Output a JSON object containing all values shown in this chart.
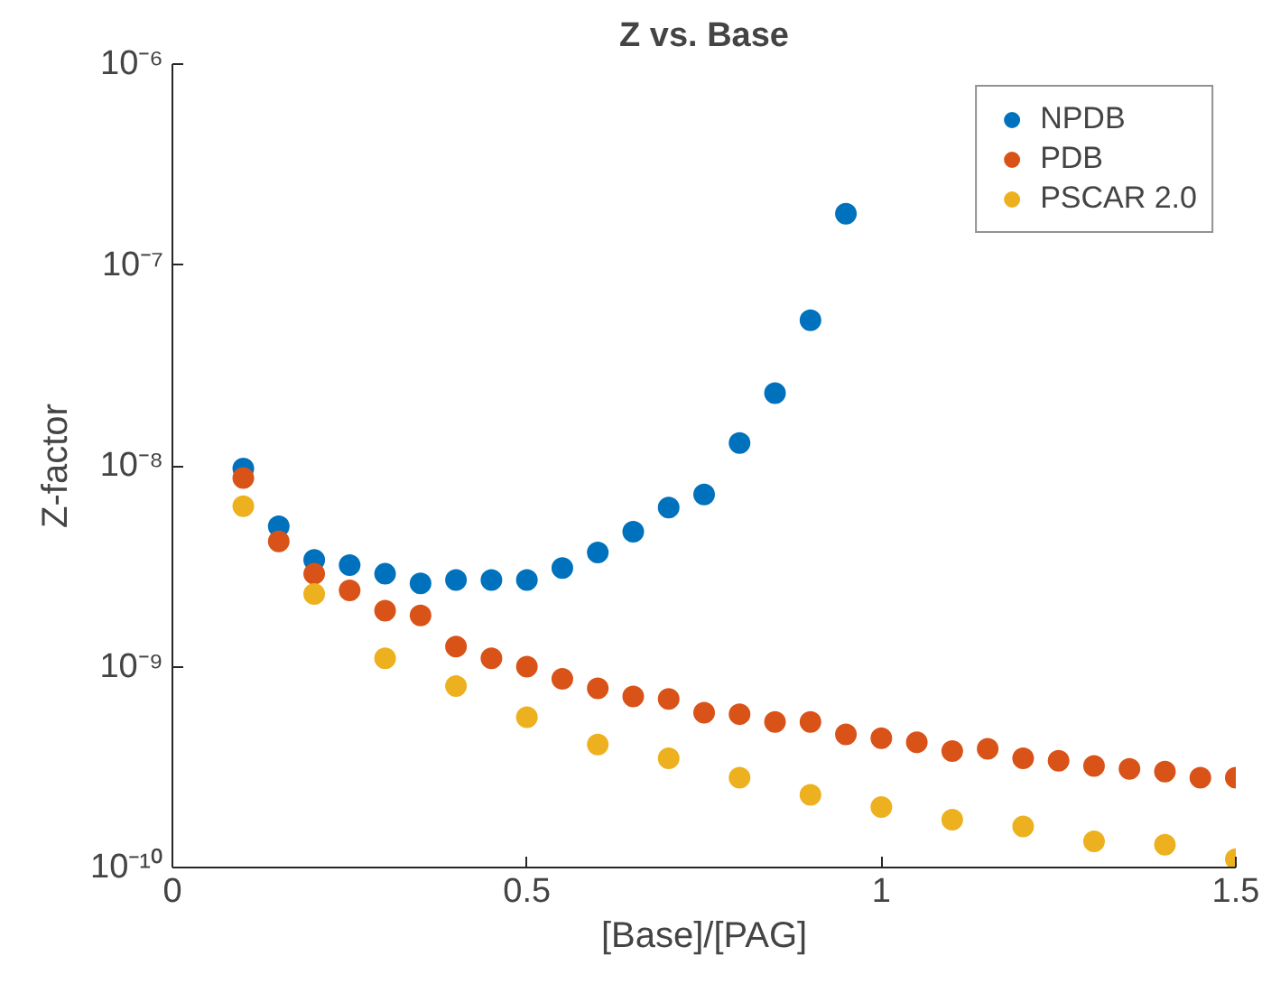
{
  "chart_data": {
    "type": "scatter",
    "title": "Z vs. Base",
    "xlabel": "[Base]/[PAG]",
    "ylabel": "Z-factor",
    "log": "y",
    "marker": "circle",
    "grid": false,
    "legend": "top right",
    "xlim": [
      0,
      1.5
    ],
    "xticks": [
      0,
      0.5,
      1,
      1.5
    ],
    "ylim": [
      1e-10,
      1e-06
    ],
    "yticks": [
      {
        "value": 1e-10,
        "label": "10⁻¹⁰"
      },
      {
        "value": 1e-09,
        "label": "10⁻⁹"
      },
      {
        "value": 1e-08,
        "label": "10⁻⁸"
      },
      {
        "value": 1e-07,
        "label": "10⁻⁷"
      },
      {
        "value": 1e-06,
        "label": "10⁻⁶"
      }
    ],
    "series": [
      {
        "name": "NPDB",
        "color": "#0072bd",
        "x": [
          0.1,
          0.15,
          0.2,
          0.25,
          0.3,
          0.35,
          0.4,
          0.45,
          0.5,
          0.55,
          0.6,
          0.65,
          0.7,
          0.75,
          0.8,
          0.85,
          0.9,
          0.95
        ],
        "values": [
          9.7e-09,
          5e-09,
          3.4e-09,
          3.2e-09,
          2.9e-09,
          2.6e-09,
          2.7e-09,
          2.7e-09,
          2.7e-09,
          3.1e-09,
          3.7e-09,
          4.7e-09,
          6.2e-09,
          7.2e-09,
          1.3e-08,
          2.3e-08,
          5.3e-08,
          1.8e-07
        ]
      },
      {
        "name": "PDB",
        "color": "#d95319",
        "x": [
          0.1,
          0.15,
          0.2,
          0.25,
          0.3,
          0.35,
          0.4,
          0.45,
          0.5,
          0.55,
          0.6,
          0.65,
          0.7,
          0.75,
          0.8,
          0.85,
          0.9,
          0.95,
          1.0,
          1.05,
          1.1,
          1.15,
          1.2,
          1.25,
          1.3,
          1.35,
          1.4,
          1.45,
          1.5
        ],
        "values": [
          8.7e-09,
          4.2e-09,
          2.9e-09,
          2.4e-09,
          1.9e-09,
          1.8e-09,
          1.26e-09,
          1.1e-09,
          1e-09,
          8.7e-10,
          7.8e-10,
          7.1e-10,
          6.9e-10,
          5.9e-10,
          5.8e-10,
          5.3e-10,
          5.3e-10,
          4.6e-10,
          4.4e-10,
          4.2e-10,
          3.8e-10,
          3.9e-10,
          3.5e-10,
          3.4e-10,
          3.2e-10,
          3.1e-10,
          3e-10,
          2.8e-10,
          2.8e-10
        ]
      },
      {
        "name": "PSCAR 2.0",
        "color": "#edb120",
        "x": [
          0.1,
          0.2,
          0.3,
          0.4,
          0.5,
          0.6,
          0.7,
          0.8,
          0.9,
          1.0,
          1.1,
          1.2,
          1.3,
          1.4,
          1.5
        ],
        "values": [
          6.3e-09,
          2.3e-09,
          1.1e-09,
          8e-10,
          5.6e-10,
          4.1e-10,
          3.5e-10,
          2.8e-10,
          2.3e-10,
          2e-10,
          1.73e-10,
          1.6e-10,
          1.35e-10,
          1.3e-10,
          1.1e-10
        ]
      }
    ]
  }
}
